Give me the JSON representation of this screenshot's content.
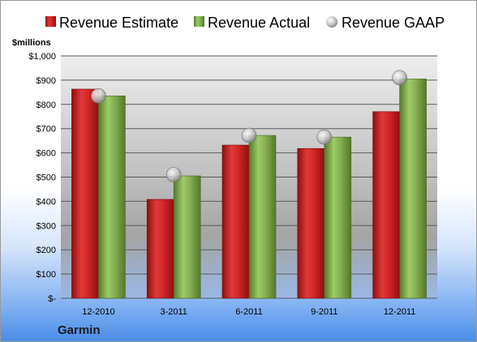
{
  "chart_data": {
    "type": "bar",
    "unit_label": "$millions",
    "company": "Garmin",
    "categories": [
      "12-2010",
      "3-2011",
      "6-2011",
      "9-2011",
      "12-2011"
    ],
    "series": [
      {
        "name": "Revenue Estimate",
        "kind": "bar",
        "color": "#cc1f1f",
        "values": [
          863,
          408,
          632,
          618,
          770
        ]
      },
      {
        "name": "Revenue Actual",
        "kind": "bar",
        "color": "#7fa84a",
        "values": [
          835,
          505,
          672,
          665,
          905
        ]
      },
      {
        "name": "Revenue GAAP",
        "kind": "marker",
        "color": "#c8c8c8",
        "values": [
          835,
          510,
          672,
          665,
          910
        ]
      }
    ],
    "y_ticks": [
      "$-",
      "$100",
      "$200",
      "$300",
      "$400",
      "$500",
      "$600",
      "$700",
      "$800",
      "$900",
      "$1,000"
    ],
    "ylim": [
      0,
      1000
    ],
    "grid": true,
    "legend_position": "top"
  }
}
